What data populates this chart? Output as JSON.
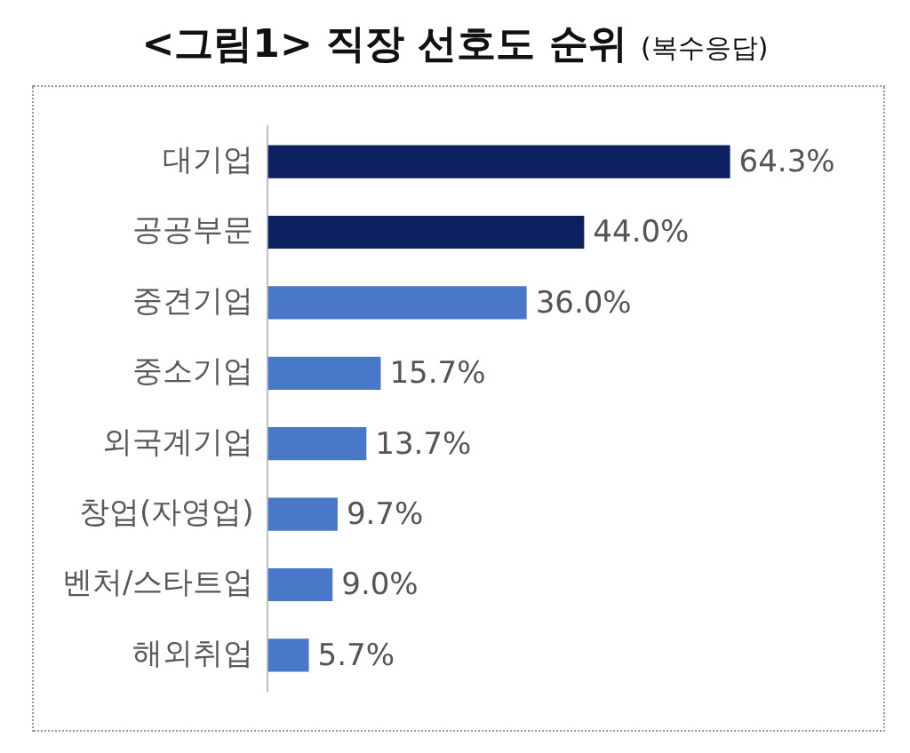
{
  "chart_data": {
    "type": "bar",
    "orientation": "horizontal",
    "title": "<그림1> 직장 선호도 순위",
    "subtitle": "(복수응답)",
    "categories": [
      "대기업",
      "공공부문",
      "중견기업",
      "중소기업",
      "외국계기업",
      "창업(자영업)",
      "벤처/스타트업",
      "해외취업"
    ],
    "values": [
      64.3,
      44.0,
      36.0,
      15.7,
      13.7,
      9.7,
      9.0,
      5.7
    ],
    "colors": [
      "#0c1f5e",
      "#0c1f5e",
      "#4a78c8",
      "#4a78c8",
      "#4a78c8",
      "#4a78c8",
      "#4a78c8",
      "#4a78c8"
    ],
    "value_labels": [
      "64.3%",
      "44.0%",
      "36.0%",
      "15.7%",
      "13.7%",
      "9.7%",
      "9.0%",
      "5.7%"
    ]
  }
}
